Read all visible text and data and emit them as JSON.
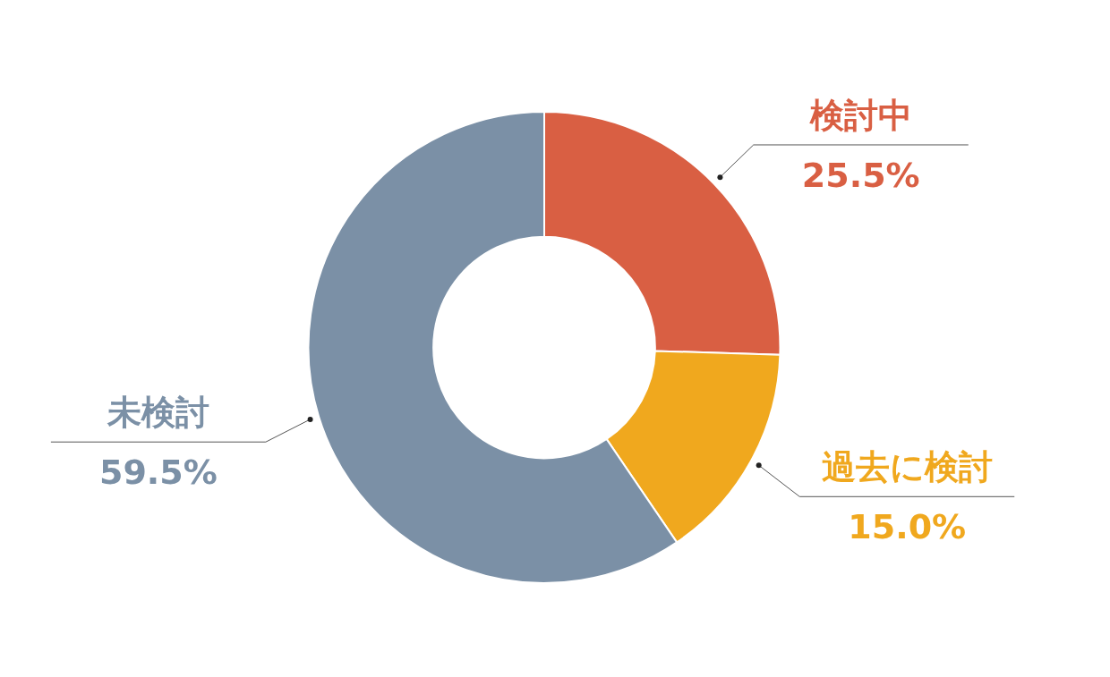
{
  "chart_data": {
    "type": "donut",
    "categories": [
      "検討中",
      "過去に検討",
      "未検討"
    ],
    "values": [
      25.5,
      15.0,
      59.5
    ],
    "colors": [
      "#d95f43",
      "#f0a81e",
      "#7b90a6"
    ],
    "value_labels": [
      "25.5%",
      "15.0%",
      "59.5%"
    ],
    "legend": false
  }
}
